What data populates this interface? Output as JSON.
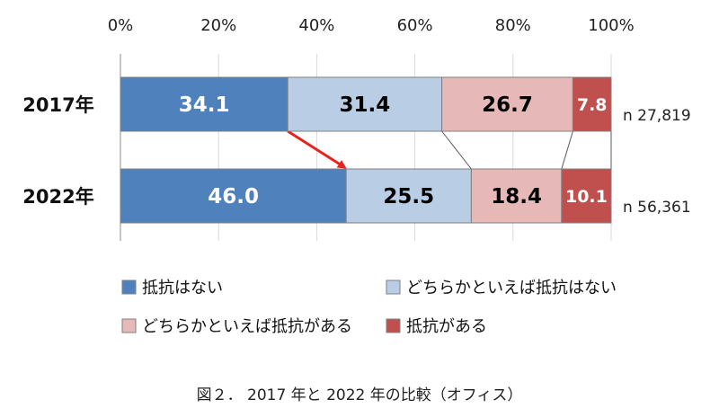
{
  "chart_data": {
    "type": "bar",
    "orientation": "horizontal",
    "stacked": true,
    "normalized_percent": true,
    "x_ticks": [
      "0%",
      "20%",
      "40%",
      "60%",
      "80%",
      "100%"
    ],
    "xlim": [
      0,
      100
    ],
    "categories": [
      "2017年",
      "2022年"
    ],
    "series": [
      {
        "name": "抵抗はない",
        "values": [
          34.1,
          46.0
        ],
        "labels": [
          "34.1",
          "46.0"
        ],
        "color": "#4f81bd",
        "text_color": "#ffffff"
      },
      {
        "name": "どちらかといえば抵抗はない",
        "values": [
          31.4,
          25.5
        ],
        "labels": [
          "31.4",
          "25.5"
        ],
        "color": "#b9cde5",
        "text_color": "#000000"
      },
      {
        "name": "どちらかといえば抵抗がある",
        "values": [
          26.7,
          18.4
        ],
        "labels": [
          "26.7",
          "18.4"
        ],
        "color": "#e6b9b8",
        "text_color": "#000000"
      },
      {
        "name": "抵抗がある",
        "values": [
          7.8,
          10.1
        ],
        "labels": [
          "7.8",
          "10.1"
        ],
        "color": "#c0504d",
        "text_color": "#ffffff"
      }
    ],
    "sample_sizes": [
      "n 27,819",
      "n 56,361"
    ],
    "annotation": "red arrow from end of 2017 '抵抗はない' segment to end of 2022 '抵抗はない' segment",
    "legend_position": "bottom",
    "title": "図２． 2017 年と 2022 年の比較（オフィス）"
  }
}
